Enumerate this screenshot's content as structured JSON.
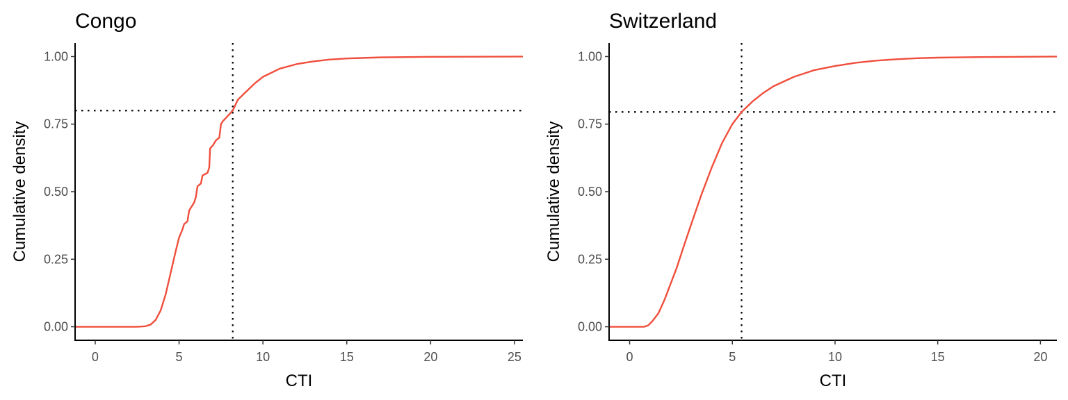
{
  "colors": {
    "series": "#f04e3c",
    "axis": "#000000",
    "tick_label": "#4d4d4d",
    "background": "#ffffff"
  },
  "chart_data": [
    {
      "type": "line",
      "subtype": "ecdf",
      "title": "Congo",
      "xlabel": "CTI",
      "ylabel": "Cumulative density",
      "xlim": [
        -1.2,
        25.5
      ],
      "ylim": [
        -0.05,
        1.05
      ],
      "x_ticks": [
        0,
        5,
        10,
        15,
        20,
        25
      ],
      "x_tick_labels": [
        "0",
        "5",
        "10",
        "15",
        "20",
        "25"
      ],
      "y_ticks": [
        0,
        0.25,
        0.5,
        0.75,
        1
      ],
      "y_tick_labels": [
        "0.00",
        "0.25",
        "0.50",
        "0.75",
        "1.00"
      ],
      "grid": false,
      "legend": "none",
      "reference_lines": {
        "x": 8.2,
        "y": 0.8
      },
      "series": [
        {
          "points": [
            [
              -1.2,
              0
            ],
            [
              2.5,
              0
            ],
            [
              3.0,
              0.002
            ],
            [
              3.3,
              0.008
            ],
            [
              3.6,
              0.025
            ],
            [
              3.9,
              0.06
            ],
            [
              4.2,
              0.12
            ],
            [
              4.5,
              0.2
            ],
            [
              4.8,
              0.28
            ],
            [
              5.0,
              0.33
            ],
            [
              5.2,
              0.36
            ],
            [
              5.3,
              0.38
            ],
            [
              5.5,
              0.39
            ],
            [
              5.6,
              0.43
            ],
            [
              5.8,
              0.45
            ],
            [
              5.9,
              0.46
            ],
            [
              6.0,
              0.48
            ],
            [
              6.1,
              0.52
            ],
            [
              6.3,
              0.53
            ],
            [
              6.4,
              0.56
            ],
            [
              6.7,
              0.57
            ],
            [
              6.8,
              0.59
            ],
            [
              6.85,
              0.66
            ],
            [
              7.0,
              0.67
            ],
            [
              7.2,
              0.69
            ],
            [
              7.4,
              0.7
            ],
            [
              7.5,
              0.75
            ],
            [
              7.6,
              0.76
            ],
            [
              7.9,
              0.78
            ],
            [
              8.2,
              0.8
            ],
            [
              8.5,
              0.84
            ],
            [
              9.0,
              0.87
            ],
            [
              9.5,
              0.9
            ],
            [
              10.0,
              0.925
            ],
            [
              11.0,
              0.955
            ],
            [
              12.0,
              0.972
            ],
            [
              13.0,
              0.982
            ],
            [
              14.0,
              0.989
            ],
            [
              15.0,
              0.993
            ],
            [
              17.0,
              0.997
            ],
            [
              20.0,
              0.999
            ],
            [
              25.5,
              1.0
            ]
          ]
        }
      ]
    },
    {
      "type": "line",
      "subtype": "ecdf",
      "title": "Switzerland",
      "xlabel": "CTI",
      "ylabel": "Cumulative density",
      "xlim": [
        -1.0,
        20.8
      ],
      "ylim": [
        -0.05,
        1.05
      ],
      "x_ticks": [
        0,
        5,
        10,
        15,
        20
      ],
      "x_tick_labels": [
        "0",
        "5",
        "10",
        "15",
        "20"
      ],
      "y_ticks": [
        0,
        0.25,
        0.5,
        0.75,
        1
      ],
      "y_tick_labels": [
        "0.00",
        "0.25",
        "0.50",
        "0.75",
        "1.00"
      ],
      "grid": false,
      "legend": "none",
      "reference_lines": {
        "x": 5.45,
        "y": 0.795
      },
      "series": [
        {
          "points": [
            [
              -1.0,
              0
            ],
            [
              0.7,
              0
            ],
            [
              0.9,
              0.005
            ],
            [
              1.1,
              0.02
            ],
            [
              1.4,
              0.05
            ],
            [
              1.7,
              0.1
            ],
            [
              2.0,
              0.16
            ],
            [
              2.3,
              0.22
            ],
            [
              2.6,
              0.29
            ],
            [
              3.0,
              0.38
            ],
            [
              3.5,
              0.49
            ],
            [
              4.0,
              0.59
            ],
            [
              4.5,
              0.68
            ],
            [
              5.0,
              0.75
            ],
            [
              5.45,
              0.795
            ],
            [
              6.0,
              0.835
            ],
            [
              6.5,
              0.865
            ],
            [
              7.0,
              0.89
            ],
            [
              8.0,
              0.925
            ],
            [
              9.0,
              0.95
            ],
            [
              10.0,
              0.965
            ],
            [
              11.0,
              0.977
            ],
            [
              12.0,
              0.985
            ],
            [
              13.0,
              0.99
            ],
            [
              14.0,
              0.994
            ],
            [
              15.0,
              0.996
            ],
            [
              17.0,
              0.998
            ],
            [
              19.0,
              0.999
            ],
            [
              20.8,
              1.0
            ]
          ]
        }
      ]
    }
  ]
}
